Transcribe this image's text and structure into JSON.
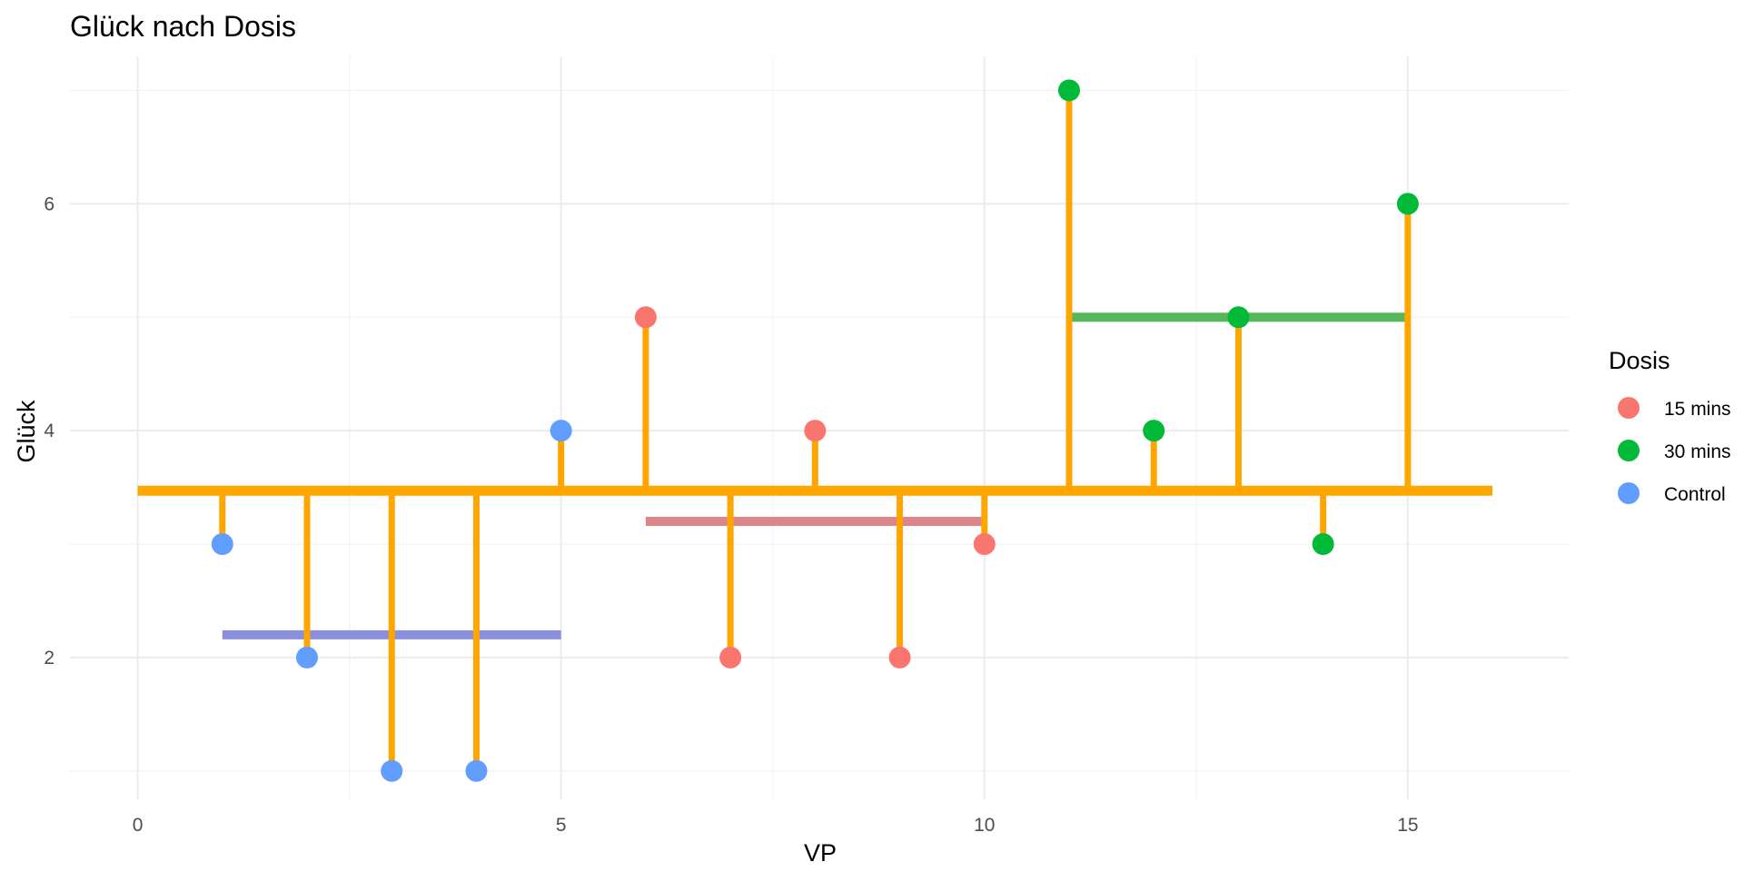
{
  "chart_data": {
    "type": "scatter",
    "title": "Glück nach Dosis",
    "xlabel": "VP",
    "ylabel": "Glück",
    "xlim": [
      -0.8,
      16.9
    ],
    "ylim": [
      0.75,
      7.3
    ],
    "x_ticks": [
      0,
      5,
      10,
      15
    ],
    "x_minor_ticks": [
      2.5,
      7.5,
      12.5
    ],
    "y_ticks": [
      2,
      4,
      6
    ],
    "y_minor_ticks": [
      1,
      3,
      5,
      7
    ],
    "grid": true,
    "legend": {
      "title": "Dosis",
      "position": "right",
      "entries": [
        {
          "label": "15 mins",
          "color": "#F8766D"
        },
        {
          "label": "30 mins",
          "color": "#00BA38"
        },
        {
          "label": "Control",
          "color": "#619CFF"
        }
      ]
    },
    "overall_mean": {
      "value": 3.47,
      "x_start": 0,
      "x_end": 16,
      "color": "#FFA500"
    },
    "group_means": [
      {
        "group": "Control",
        "value": 2.2,
        "x_start": 1,
        "x_end": 5,
        "color": "#8A8FDC"
      },
      {
        "group": "15 mins",
        "value": 3.2,
        "x_start": 6,
        "x_end": 10,
        "color": "#DE858A"
      },
      {
        "group": "30 mins",
        "value": 5.0,
        "x_start": 11,
        "x_end": 15,
        "color": "#55B757"
      }
    ],
    "residual_color": "#FFA500",
    "points": [
      {
        "x": 1,
        "y": 3,
        "group": "Control"
      },
      {
        "x": 2,
        "y": 2,
        "group": "Control"
      },
      {
        "x": 3,
        "y": 1,
        "group": "Control"
      },
      {
        "x": 4,
        "y": 1,
        "group": "Control"
      },
      {
        "x": 5,
        "y": 4,
        "group": "Control"
      },
      {
        "x": 6,
        "y": 5,
        "group": "15 mins"
      },
      {
        "x": 7,
        "y": 2,
        "group": "15 mins"
      },
      {
        "x": 8,
        "y": 4,
        "group": "15 mins"
      },
      {
        "x": 9,
        "y": 2,
        "group": "15 mins"
      },
      {
        "x": 10,
        "y": 3,
        "group": "15 mins"
      },
      {
        "x": 11,
        "y": 7,
        "group": "30 mins"
      },
      {
        "x": 12,
        "y": 4,
        "group": "30 mins"
      },
      {
        "x": 13,
        "y": 5,
        "group": "30 mins"
      },
      {
        "x": 14,
        "y": 3,
        "group": "30 mins"
      },
      {
        "x": 15,
        "y": 6,
        "group": "30 mins"
      }
    ]
  }
}
